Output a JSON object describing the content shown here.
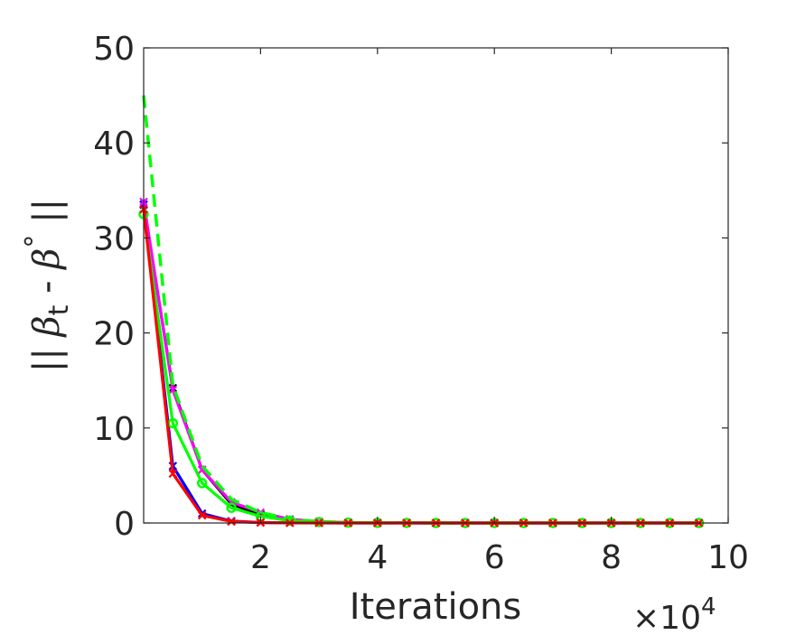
{
  "chart_data": {
    "type": "line",
    "title": "",
    "xlabel": "Iterations",
    "ylabel": "|| β_t - β° ||",
    "ylabel_parts": {
      "bars_left": "||",
      "beta": "β",
      "sub_t": "t",
      "minus": " - ",
      "beta2": "β",
      "circ": "°",
      "bars_right": "||"
    },
    "x_multiplier": {
      "times": "×10",
      "exp": "4"
    },
    "xlim": [
      0,
      10
    ],
    "ylim": [
      0,
      50
    ],
    "xticks": [
      "2",
      "4",
      "6",
      "8",
      "10"
    ],
    "xtick_values": [
      2,
      4,
      6,
      8,
      10
    ],
    "yticks": [
      "0",
      "10",
      "20",
      "30",
      "40",
      "50"
    ],
    "ytick_values": [
      0,
      10,
      20,
      30,
      40,
      50
    ],
    "grid": false,
    "x": [
      0,
      0.5,
      1,
      1.5,
      2,
      2.5,
      3,
      3.5,
      4,
      4.5,
      5,
      5.5,
      6,
      6.5,
      7,
      7.5,
      8,
      8.5,
      9,
      9.5
    ],
    "series": [
      {
        "color": "#000000",
        "style": "solid",
        "marker": "x",
        "values": [
          33.5,
          14.2,
          5.6,
          2.0,
          0.9,
          0.3,
          0.1,
          0.05,
          0.02,
          0.01,
          0,
          0,
          0,
          0,
          0,
          0,
          0,
          0,
          0,
          0
        ]
      },
      {
        "color": "#0000ff",
        "style": "solid",
        "marker": "x",
        "values": [
          33.5,
          6.0,
          1.0,
          0.2,
          0.05,
          0.02,
          0.01,
          0,
          0,
          0,
          0,
          0,
          0,
          0,
          0,
          0,
          0,
          0,
          0,
          0
        ]
      },
      {
        "color": "#ff00ff",
        "style": "solid",
        "marker": "x",
        "values": [
          33.8,
          14.0,
          5.6,
          2.2,
          1.1,
          0.4,
          0.15,
          0.05,
          0.02,
          0.01,
          0,
          0,
          0,
          0,
          0,
          0,
          0,
          0,
          0,
          0
        ]
      },
      {
        "color": "#00ff00",
        "style": "dashed",
        "marker": "none",
        "values": [
          45.0,
          14.5,
          6.0,
          2.5,
          1.1,
          0.4,
          0.15,
          0.05,
          0.02,
          0.01,
          0,
          0,
          0,
          0,
          0,
          0,
          0,
          0,
          0,
          0
        ]
      },
      {
        "color": "#00ff00",
        "style": "solid",
        "marker": "o",
        "values": [
          32.5,
          10.5,
          4.2,
          1.6,
          0.7,
          0.25,
          0.1,
          0.04,
          0.02,
          0.01,
          0,
          0,
          0,
          0,
          0,
          0,
          0,
          0,
          0,
          0
        ]
      },
      {
        "color": "#ff0000",
        "style": "solid",
        "marker": "x",
        "values": [
          33.0,
          5.2,
          0.8,
          0.15,
          0.04,
          0.01,
          0,
          0,
          0,
          0,
          0,
          0,
          0,
          0,
          0,
          0,
          0,
          0,
          0,
          0
        ]
      }
    ]
  }
}
